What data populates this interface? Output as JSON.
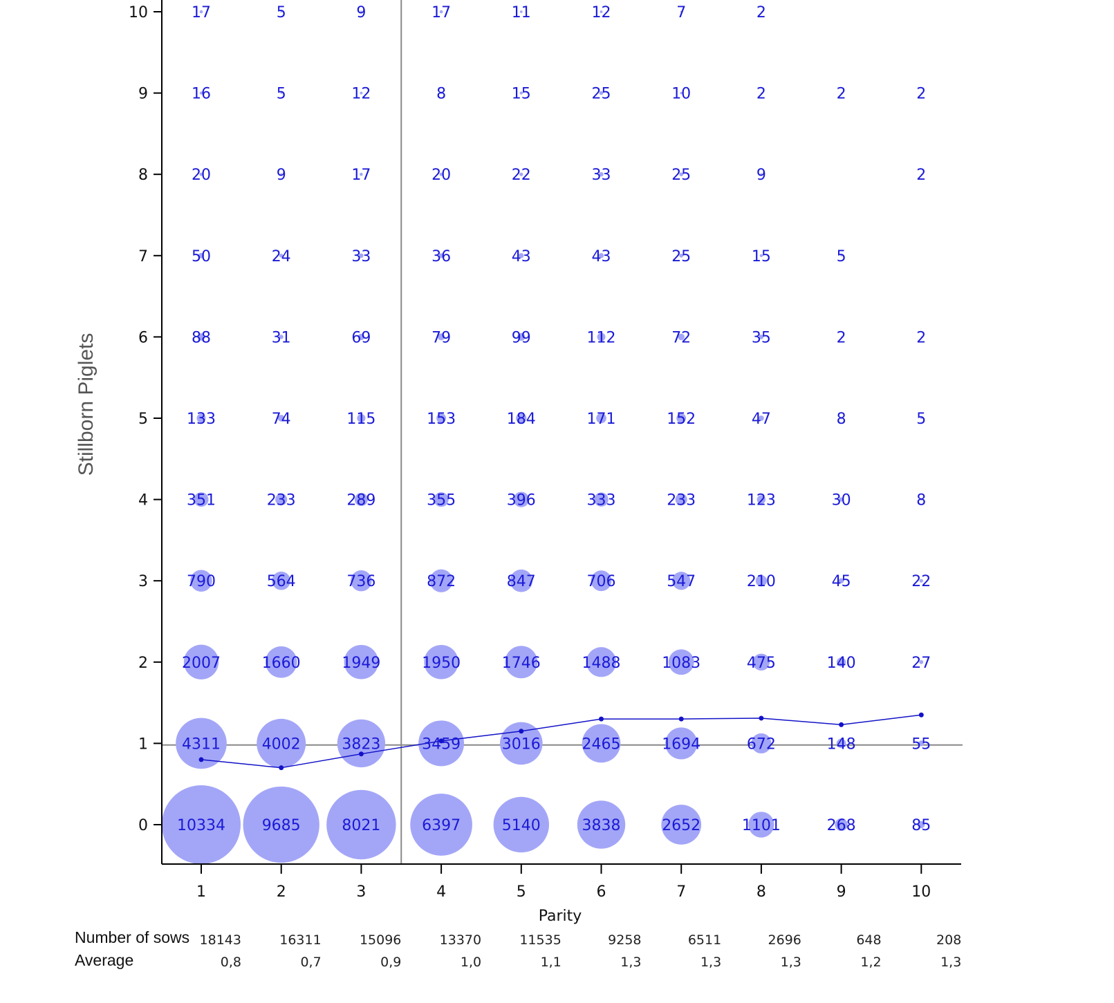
{
  "chart_data": {
    "type": "scatter",
    "subtype": "bubble",
    "xlabel": "Parity",
    "ylabel": "Stillborn Piglets",
    "x_ticks": [
      "1",
      "2",
      "3",
      "4",
      "5",
      "6",
      "7",
      "8",
      "9",
      "10"
    ],
    "y_ticks": [
      "0",
      "1",
      "2",
      "3",
      "4",
      "5",
      "6",
      "7",
      "8",
      "9",
      "10"
    ],
    "xlim": [
      0.5,
      10.5
    ],
    "ylim": [
      -0.5,
      10.1
    ],
    "bubble_color": "#a3a6f7",
    "label_color": "#1a1ad6",
    "line_color": "#1212c8",
    "reference_lines": [
      {
        "orientation": "vertical",
        "at": 3.5,
        "color": "#888888"
      },
      {
        "orientation": "horizontal",
        "at": 0.98,
        "color": "#888888"
      }
    ],
    "counts": [
      {
        "x": 1,
        "values": [
          10334,
          4311,
          2007,
          790,
          351,
          133,
          88,
          50,
          20,
          16,
          17
        ]
      },
      {
        "x": 2,
        "values": [
          9685,
          4002,
          1660,
          564,
          233,
          74,
          31,
          24,
          9,
          5,
          5
        ]
      },
      {
        "x": 3,
        "values": [
          8021,
          3823,
          1949,
          736,
          289,
          115,
          69,
          33,
          17,
          12,
          9
        ]
      },
      {
        "x": 4,
        "values": [
          6397,
          3459,
          1950,
          872,
          355,
          153,
          79,
          36,
          20,
          8,
          17
        ]
      },
      {
        "x": 5,
        "values": [
          5140,
          3016,
          1746,
          847,
          396,
          184,
          99,
          43,
          22,
          15,
          11
        ]
      },
      {
        "x": 6,
        "values": [
          3838,
          2465,
          1488,
          706,
          333,
          171,
          112,
          43,
          33,
          25,
          12
        ]
      },
      {
        "x": 7,
        "values": [
          2652,
          1694,
          1083,
          547,
          233,
          152,
          72,
          25,
          25,
          10,
          7
        ]
      },
      {
        "x": 8,
        "values": [
          1101,
          672,
          475,
          210,
          123,
          47,
          35,
          15,
          9,
          2,
          2
        ]
      },
      {
        "x": 9,
        "values": [
          268,
          148,
          140,
          45,
          30,
          8,
          2,
          5,
          null,
          2,
          null
        ]
      },
      {
        "x": 10,
        "values": [
          85,
          55,
          27,
          22,
          8,
          5,
          2,
          null,
          2,
          2,
          null
        ]
      }
    ],
    "average_line": {
      "x": [
        1,
        2,
        3,
        4,
        5,
        6,
        7,
        8,
        9,
        10
      ],
      "y": [
        0.8,
        0.7,
        0.87,
        1.03,
        1.15,
        1.3,
        1.3,
        1.31,
        1.23,
        1.35
      ]
    },
    "footer": {
      "sows_label": "Number of sows",
      "average_label": "Average",
      "sows": [
        "18143",
        "16311",
        "15096",
        "13370",
        "11535",
        "9258",
        "6511",
        "2696",
        "648",
        "208"
      ],
      "averages": [
        "0,8",
        "0,7",
        "0,9",
        "1,0",
        "1,1",
        "1,3",
        "1,3",
        "1,3",
        "1,2",
        "1,3"
      ]
    }
  }
}
